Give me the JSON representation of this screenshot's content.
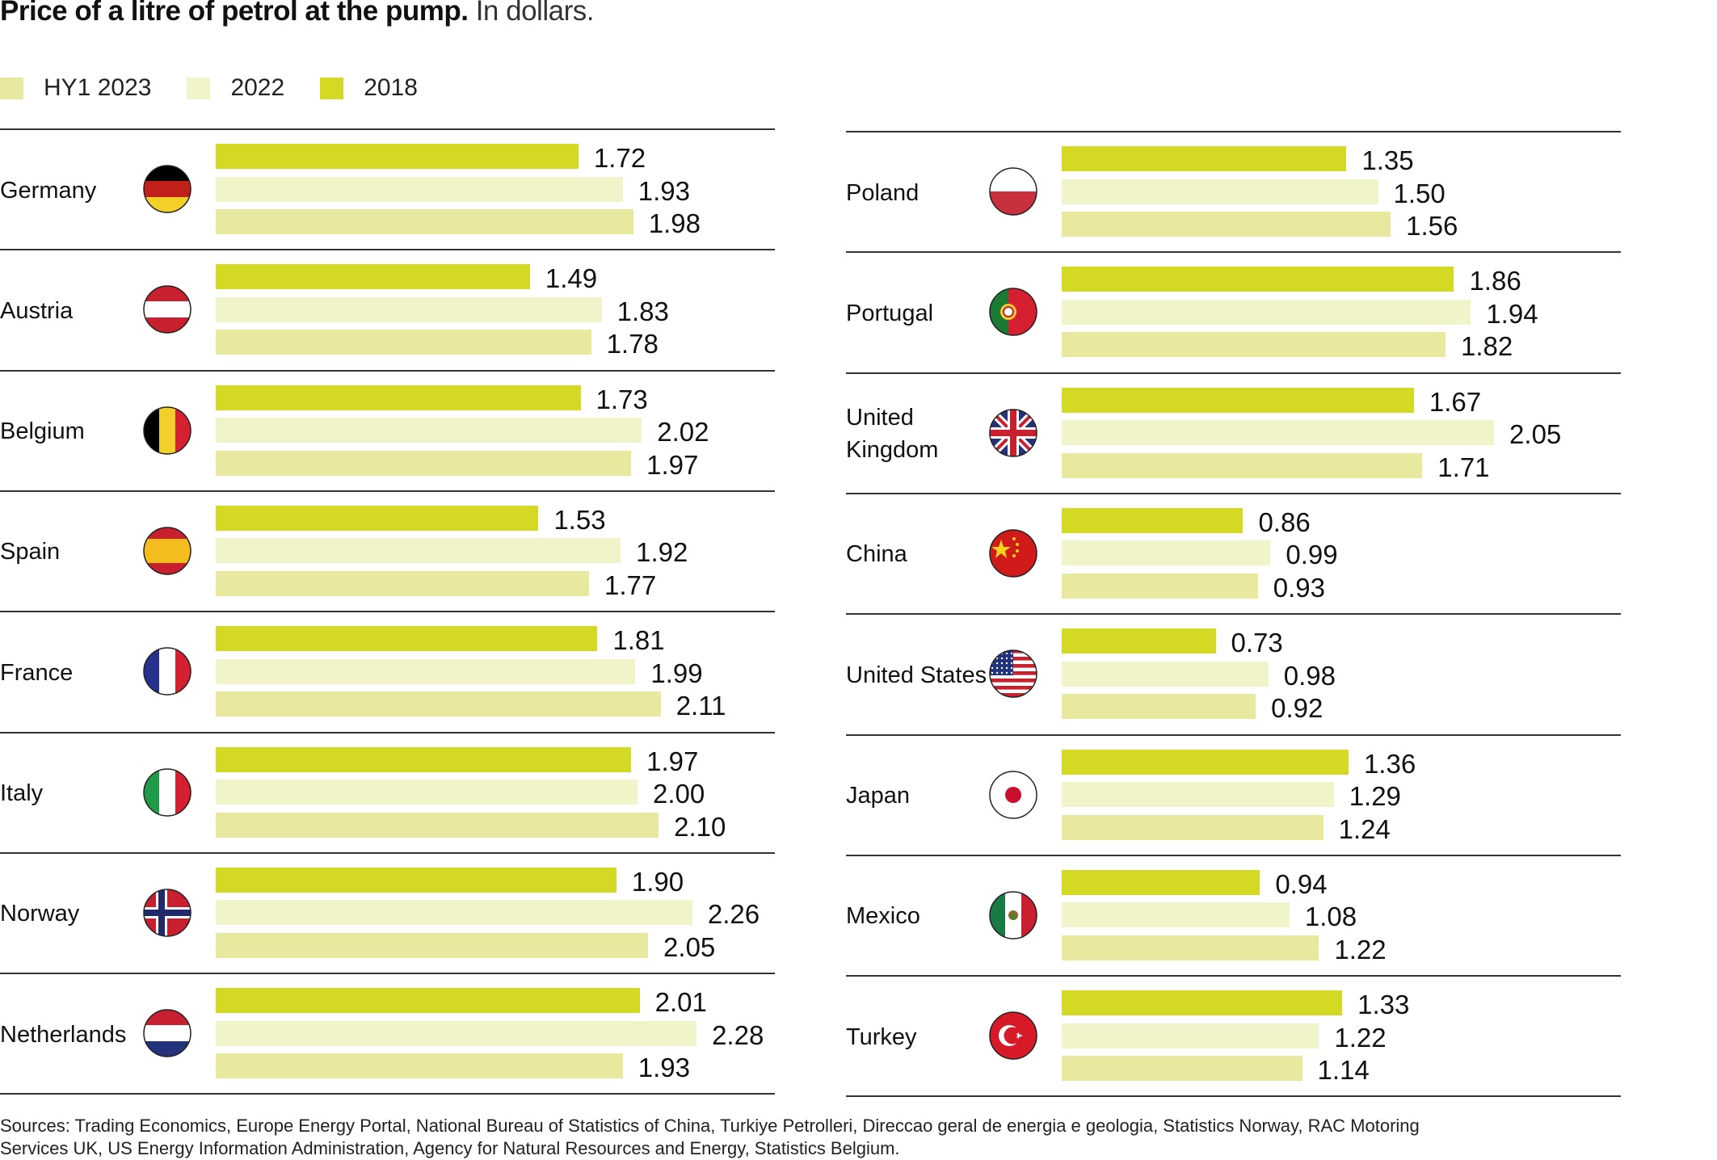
{
  "title": {
    "bold": "Price of a litre of petrol at the pump.",
    "sub": "In dollars."
  },
  "legend": [
    {
      "label": "HY1 2023",
      "key": "hy1_2023",
      "color": "#e8e99e"
    },
    {
      "label": "2022",
      "key": "y2022",
      "color": "#f1f3c9"
    },
    {
      "label": "2018",
      "key": "y2018",
      "color": "#d4d924"
    }
  ],
  "chart_data": {
    "type": "bar",
    "orientation": "horizontal",
    "title": "Price of a litre of petrol at the pump. In dollars.",
    "series_order_in_row": [
      "2018",
      "2022",
      "HY1 2023"
    ],
    "series_colors": {
      "2018": "#d4d924",
      "2022": "#f1f3c9",
      "HY1 2023": "#e8e99e"
    },
    "panels": [
      {
        "rows": [
          {
            "country": "Germany",
            "flag": "germany-flag-icon",
            "code": "de",
            "y2018": 1.72,
            "y2022": 1.93,
            "hy1_2023": 1.98
          },
          {
            "country": "Austria",
            "flag": "austria-flag-icon",
            "code": "at",
            "y2018": 1.49,
            "y2022": 1.83,
            "hy1_2023": 1.78
          },
          {
            "country": "Belgium",
            "flag": "belgium-flag-icon",
            "code": "be",
            "y2018": 1.73,
            "y2022": 2.02,
            "hy1_2023": 1.97
          },
          {
            "country": "Spain",
            "flag": "spain-flag-icon",
            "code": "es",
            "y2018": 1.53,
            "y2022": 1.92,
            "hy1_2023": 1.77
          },
          {
            "country": "France",
            "flag": "france-flag-icon",
            "code": "fr",
            "y2018": 1.81,
            "y2022": 1.99,
            "hy1_2023": 2.11
          },
          {
            "country": "Italy",
            "flag": "italy-flag-icon",
            "code": "it",
            "y2018": 1.97,
            "y2022": 2.0,
            "hy1_2023": 2.1
          },
          {
            "country": "Norway",
            "flag": "norway-flag-icon",
            "code": "no",
            "y2018": 1.9,
            "y2022": 2.26,
            "hy1_2023": 2.05
          },
          {
            "country": "Netherlands",
            "flag": "netherlands-flag-icon",
            "code": "nl",
            "y2018": 2.01,
            "y2022": 2.28,
            "hy1_2023": 1.93
          }
        ]
      },
      {
        "rows": [
          {
            "country": "Poland",
            "flag": "poland-flag-icon",
            "code": "pl",
            "y2018": 1.35,
            "y2022": 1.5,
            "hy1_2023": 1.56
          },
          {
            "country": "Portugal",
            "flag": "portugal-flag-icon",
            "code": "pt",
            "y2018": 1.86,
            "y2022": 1.94,
            "hy1_2023": 1.82
          },
          {
            "country": "United\nKingdom",
            "flag": "uk-flag-icon",
            "code": "gb",
            "y2018": 1.67,
            "y2022": 2.05,
            "hy1_2023": 1.71
          },
          {
            "country": "China",
            "flag": "china-flag-icon",
            "code": "cn",
            "y2018": 0.86,
            "y2022": 0.99,
            "hy1_2023": 0.93
          },
          {
            "country": "United States",
            "flag": "us-flag-icon",
            "code": "us",
            "y2018": 0.73,
            "y2022": 0.98,
            "hy1_2023": 0.92
          },
          {
            "country": "Japan",
            "flag": "japan-flag-icon",
            "code": "jp",
            "y2018": 1.36,
            "y2022": 1.29,
            "hy1_2023": 1.24
          },
          {
            "country": "Mexico",
            "flag": "mexico-flag-icon",
            "code": "mx",
            "y2018": 0.94,
            "y2022": 1.08,
            "hy1_2023": 1.22
          },
          {
            "country": "Turkey",
            "flag": "turkey-flag-icon",
            "code": "tr",
            "y2018": 1.33,
            "y2022": 1.22,
            "hy1_2023": 1.14
          }
        ]
      }
    ]
  },
  "sources": "Sources: Trading Economics, Europe Energy Portal, National Bureau of Statistics of China, Turkiye Petrolleri, Direccao geral de energia e geologia, Statistics Norway, RAC Motoring Services UK, US Energy Information Administration, Agency for Natural Resources and Energy, Statistics Belgium."
}
